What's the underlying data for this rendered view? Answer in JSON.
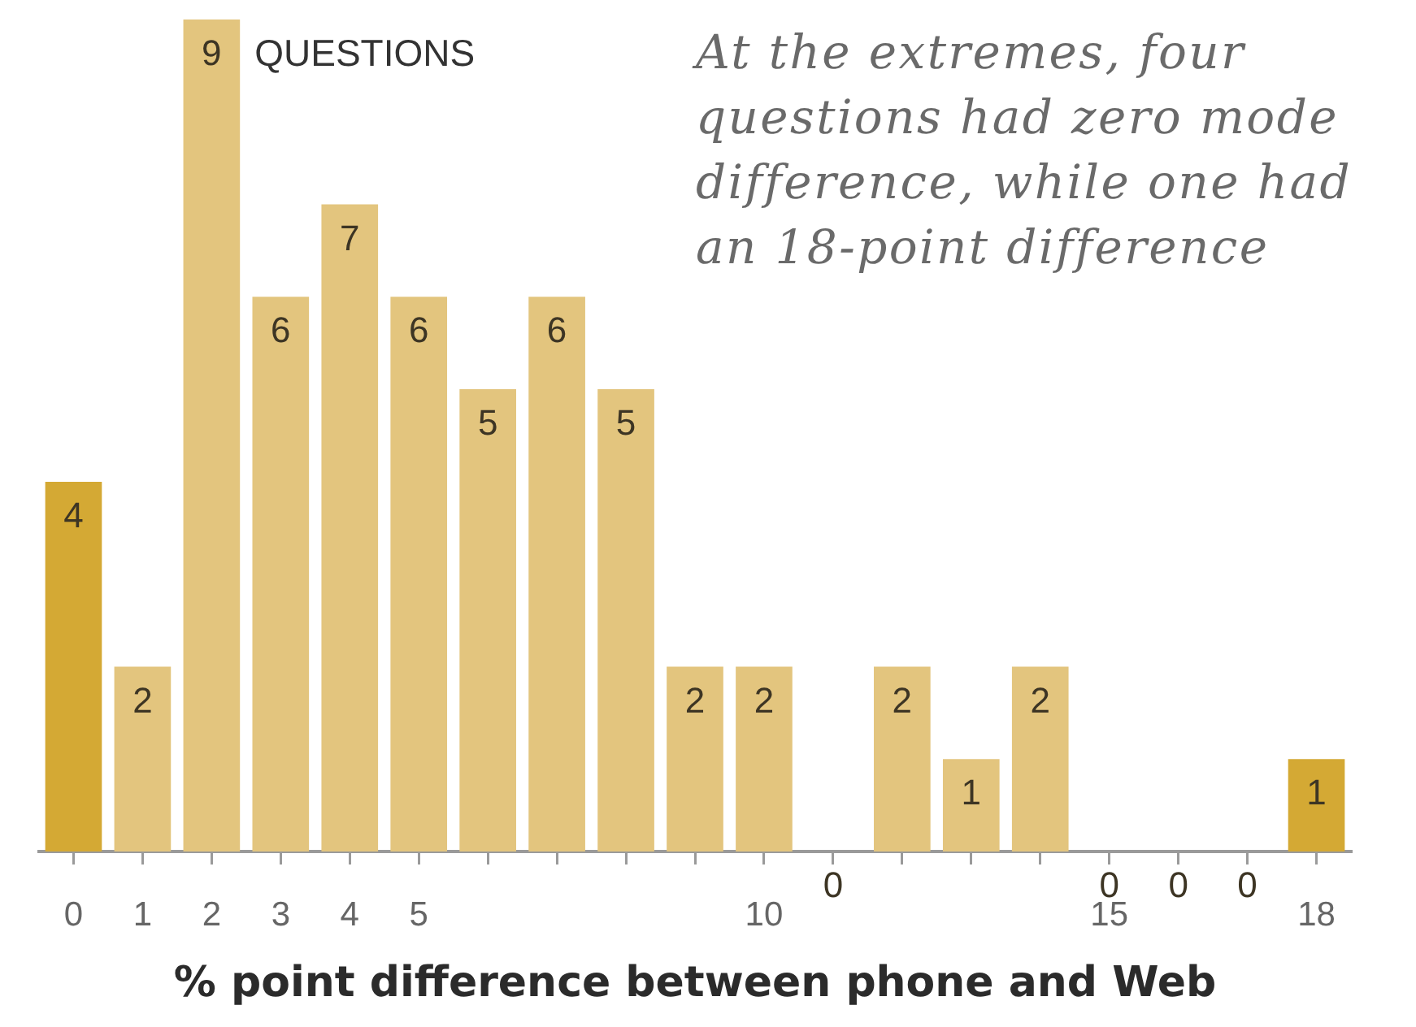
{
  "chart_data": {
    "type": "bar",
    "xlabel": "% point difference between phone and Web",
    "categories": [
      "0",
      "1",
      "2",
      "3",
      "4",
      "5",
      null,
      null,
      null,
      null,
      "10",
      null,
      null,
      null,
      null,
      "15",
      null,
      null,
      "18"
    ],
    "values": [
      4,
      2,
      9,
      6,
      7,
      6,
      5,
      6,
      5,
      2,
      2,
      0,
      2,
      1,
      2,
      0,
      0,
      0,
      1
    ],
    "colors": [
      "#d4a934",
      "#e3c57e",
      "#e3c57e",
      "#e3c57e",
      "#e3c57e",
      "#e3c57e",
      "#e3c57e",
      "#e3c57e",
      "#e3c57e",
      "#e3c57e",
      "#e3c57e",
      "#e3c57e",
      "#e3c57e",
      "#e3c57e",
      "#e3c57e",
      "#e3c57e",
      "#e3c57e",
      "#e3c57e",
      "#d4a934"
    ],
    "ylim": [
      0,
      9
    ],
    "tick_labels": "x",
    "data_labels": true,
    "annotations": [
      {
        "text": "QUESTIONS",
        "x": "2",
        "y": 9
      },
      "At the extremes, four questions had zero mode difference, while one had an 18-point difference"
    ]
  }
}
